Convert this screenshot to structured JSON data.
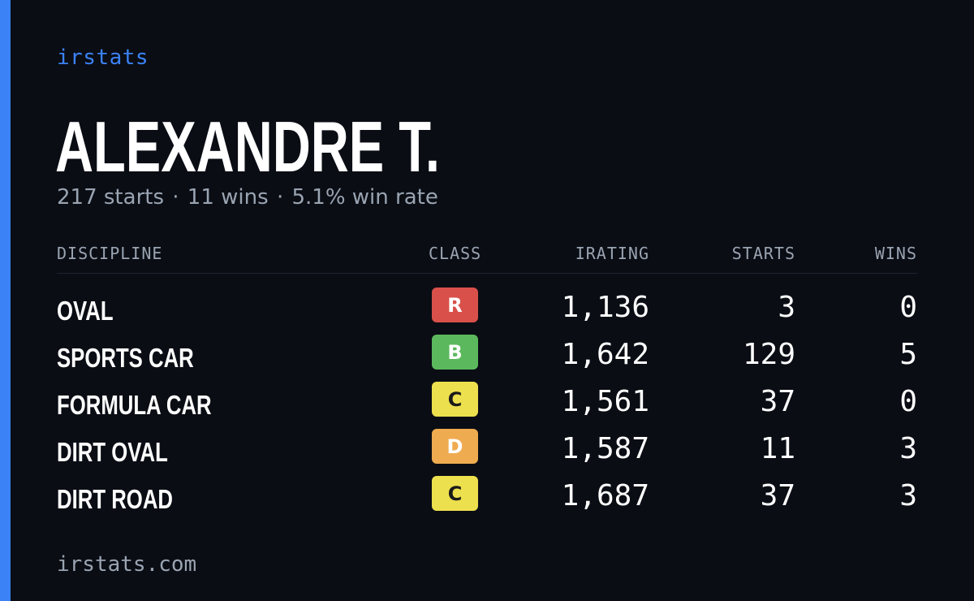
{
  "brand": "irstats",
  "player": {
    "name": "ALEXANDRE T.",
    "starts_text": "217 starts",
    "wins_text": "11 wins",
    "winrate_text": "5.1% win rate",
    "separator": "·"
  },
  "table": {
    "headers": {
      "discipline": "DISCIPLINE",
      "class": "CLASS",
      "irating": "IRATING",
      "starts": "STARTS",
      "wins": "WINS"
    },
    "rows": [
      {
        "discipline": "OVAL",
        "class": "R",
        "class_color": "#d9504a",
        "class_text_color": "#ffffff",
        "irating": "1,136",
        "starts": "3",
        "wins": "0"
      },
      {
        "discipline": "SPORTS CAR",
        "class": "B",
        "class_color": "#5cb85c",
        "class_text_color": "#ffffff",
        "irating": "1,642",
        "starts": "129",
        "wins": "5"
      },
      {
        "discipline": "FORMULA CAR",
        "class": "C",
        "class_color": "#ede04e",
        "class_text_color": "#1a1a1a",
        "irating": "1,561",
        "starts": "37",
        "wins": "0"
      },
      {
        "discipline": "DIRT OVAL",
        "class": "D",
        "class_color": "#efab50",
        "class_text_color": "#ffffff",
        "irating": "1,587",
        "starts": "11",
        "wins": "3"
      },
      {
        "discipline": "DIRT ROAD",
        "class": "C",
        "class_color": "#ede04e",
        "class_text_color": "#1a1a1a",
        "irating": "1,687",
        "starts": "37",
        "wins": "3"
      }
    ]
  },
  "footer": "irstats.com",
  "colors": {
    "background": "#0a0d14",
    "accent": "#3b82f6",
    "muted": "#9aa4b2"
  }
}
